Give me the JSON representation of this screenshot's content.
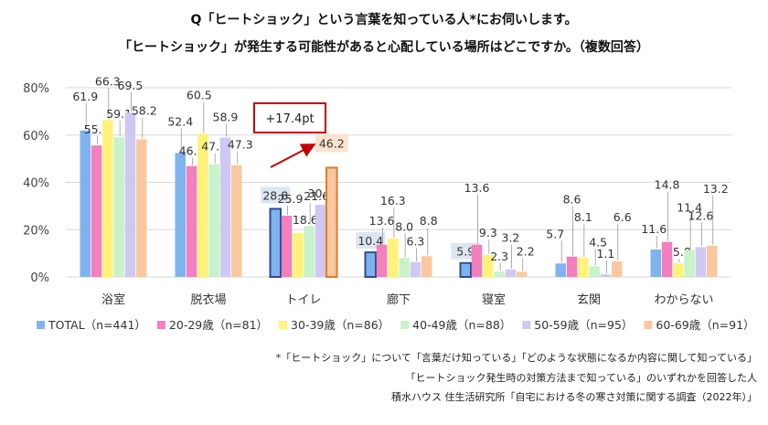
{
  "title_line1": "Q「ヒートショック」という言葉を知っている人*にお伺いします。",
  "title_line2": "「ヒートショック」が発生する可能性があると心配している場所はどこですか。（複数回答）",
  "annotation": "+17.4pt",
  "footnotes": [
    "*「ヒートショック」について「言葉だけ知っている」「どのような状態になるか内容に関して知っている」",
    "「ヒートショック発生時の対策方法まで知っている」のいずれかを回答した人",
    "積水ハウス 住生活研究所「自宅における冬の寒さ対策に関する調査（2022年）」"
  ],
  "chart_data": {
    "type": "bar",
    "categories": [
      "浴室",
      "脱衣場",
      "トイレ",
      "廊下",
      "寝室",
      "玄関",
      "わからない"
    ],
    "y_ticks": [
      "0%",
      "20%",
      "40%",
      "60%",
      "80%"
    ],
    "ylim": [
      0,
      80
    ],
    "grid": true,
    "legend_position": "bottom",
    "series": [
      {
        "name": "TOTAL（n=441）",
        "color": "#7fb3f0",
        "values": [
          61.9,
          52.4,
          28.8,
          10.4,
          5.9,
          5.7,
          11.6
        ]
      },
      {
        "name": "20-29歳（n=81）",
        "color": "#f27fbe",
        "values": [
          55.6,
          46.9,
          25.9,
          13.6,
          13.6,
          8.6,
          14.8
        ]
      },
      {
        "name": "30-39歳（n=86）",
        "color": "#fff27a",
        "values": [
          66.3,
          60.5,
          18.6,
          16.3,
          9.3,
          8.1,
          5.8
        ]
      },
      {
        "name": "40-49歳（n=88）",
        "color": "#c8f2c8",
        "values": [
          59.1,
          47.7,
          21.6,
          8.0,
          2.3,
          4.5,
          11.4
        ]
      },
      {
        "name": "50-59歳（n=95）",
        "color": "#cfc8f2",
        "values": [
          69.5,
          58.9,
          30.5,
          6.3,
          3.2,
          1.1,
          12.6
        ]
      },
      {
        "name": "60-69歳（n=91）",
        "color": "#fac8a0",
        "values": [
          58.2,
          47.3,
          46.2,
          8.8,
          2.2,
          6.6,
          13.2
        ]
      }
    ]
  }
}
